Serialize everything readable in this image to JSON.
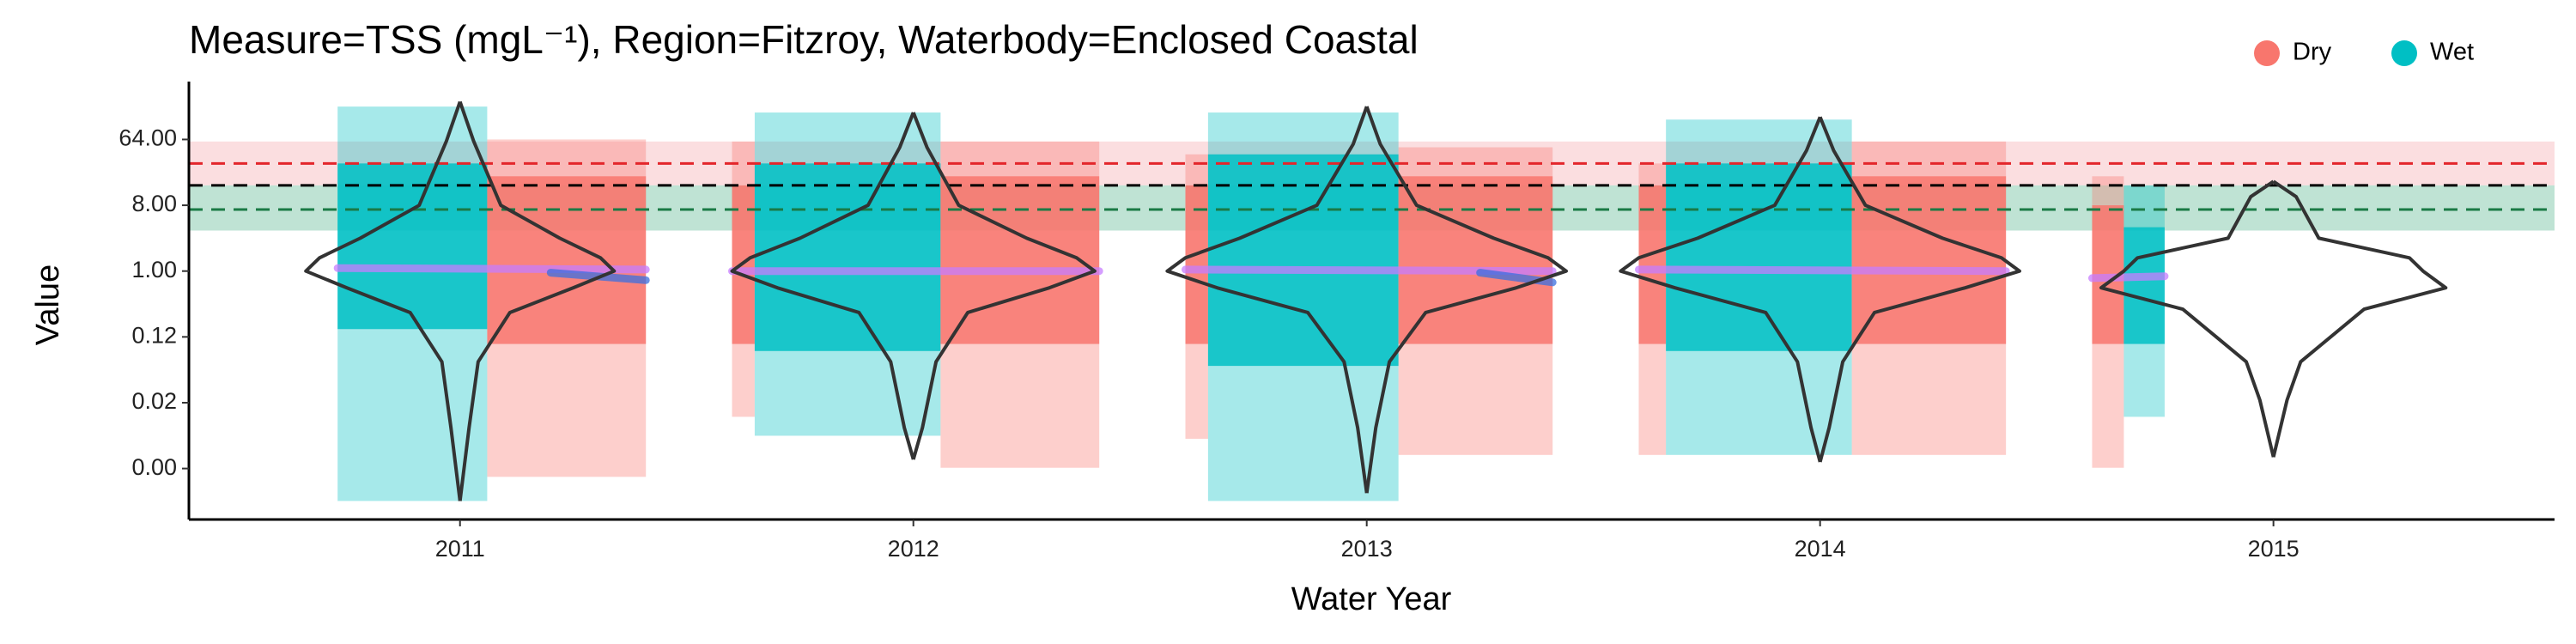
{
  "chart_data": {
    "type": "violin",
    "title": "Measure=TSS (mgL⁻¹), Region=Fitzroy, Waterbody=Enclosed Coastal",
    "xlabel": "Water Year",
    "ylabel": "Value",
    "categories": [
      "2011",
      "2012",
      "2013",
      "2014",
      "2015"
    ],
    "log_scale": true,
    "ylim": [
      0.00039,
      304
    ],
    "yticks": [
      {
        "value": 0.001953,
        "label": "0.00"
      },
      {
        "value": 0.015625,
        "label": "0.02"
      },
      {
        "value": 0.125,
        "label": "0.12"
      },
      {
        "value": 1,
        "label": "1.00"
      },
      {
        "value": 8,
        "label": "8.00"
      },
      {
        "value": 64,
        "label": "64.00"
      }
    ],
    "legend_position": "top-right",
    "series": [
      {
        "name": "Dry",
        "color": "#F8766D"
      },
      {
        "name": "Wet",
        "color": "#00BFC4"
      }
    ],
    "bands": [
      {
        "range": [
          15,
          60
        ],
        "color": "#f9d3d6"
      },
      {
        "range": [
          3.6,
          15
        ],
        "color": "#a9d9c6"
      }
    ],
    "hlines": [
      {
        "value": 30,
        "color": "#e3262b"
      },
      {
        "value": 15,
        "color": "#000000"
      },
      {
        "value": 7,
        "color": "#1a7a45"
      }
    ],
    "point_ranges": [
      {
        "category": 0,
        "series": 1,
        "x": [
          -0.27,
          0.06
        ],
        "range": [
          0.0007,
          181
        ],
        "core": [
          0.16,
          30
        ]
      },
      {
        "category": 0,
        "series": 0,
        "x": [
          0.06,
          0.41
        ],
        "range": [
          0.0015,
          64
        ],
        "core": [
          0.1,
          20
        ]
      },
      {
        "category": 1,
        "series": 0,
        "x": [
          -0.4,
          -0.35
        ],
        "range": [
          0.01,
          60
        ],
        "core": [
          0.1,
          15
        ]
      },
      {
        "category": 1,
        "series": 1,
        "x": [
          -0.35,
          0.06
        ],
        "range": [
          0.0055,
          150
        ],
        "core": [
          0.08,
          30
        ]
      },
      {
        "category": 1,
        "series": 0,
        "x": [
          0.06,
          0.41
        ],
        "range": [
          0.002,
          60
        ],
        "core": [
          0.1,
          20
        ]
      },
      {
        "category": 2,
        "series": 0,
        "x": [
          -0.4,
          -0.35
        ],
        "range": [
          0.005,
          40
        ],
        "core": [
          0.1,
          15
        ]
      },
      {
        "category": 2,
        "series": 1,
        "x": [
          -0.35,
          0.07
        ],
        "range": [
          0.0007,
          150
        ],
        "core": [
          0.05,
          40
        ]
      },
      {
        "category": 2,
        "series": 0,
        "x": [
          0.07,
          0.41
        ],
        "range": [
          0.003,
          50
        ],
        "core": [
          0.1,
          20
        ]
      },
      {
        "category": 3,
        "series": 0,
        "x": [
          -0.4,
          -0.34
        ],
        "range": [
          0.003,
          30
        ],
        "core": [
          0.1,
          15
        ]
      },
      {
        "category": 3,
        "series": 1,
        "x": [
          -0.34,
          0.07
        ],
        "range": [
          0.003,
          120
        ],
        "core": [
          0.08,
          30
        ]
      },
      {
        "category": 3,
        "series": 0,
        "x": [
          0.07,
          0.41
        ],
        "range": [
          0.003,
          60
        ],
        "core": [
          0.1,
          20
        ]
      },
      {
        "category": 4,
        "series": 0,
        "x": [
          -0.4,
          -0.33
        ],
        "range": [
          0.002,
          20
        ],
        "core": [
          0.1,
          8
        ]
      },
      {
        "category": 4,
        "series": 1,
        "x": [
          -0.33,
          -0.24
        ],
        "range": [
          0.01,
          15
        ],
        "core": [
          0.1,
          4
        ]
      }
    ],
    "smooths": [
      {
        "category": 0,
        "x": [
          -0.27,
          0.41
        ],
        "values": [
          1.1,
          1.05
        ],
        "color": "#c77dff"
      },
      {
        "category": 1,
        "x": [
          -0.4,
          0.41
        ],
        "values": [
          1.0,
          1.0
        ],
        "color": "#c77dff"
      },
      {
        "category": 2,
        "x": [
          -0.4,
          0.41
        ],
        "values": [
          1.05,
          1.0
        ],
        "color": "#c77dff"
      },
      {
        "category": 3,
        "x": [
          -0.4,
          0.41
        ],
        "values": [
          1.05,
          1.0
        ],
        "color": "#c77dff"
      },
      {
        "category": 4,
        "x": [
          -0.4,
          -0.24
        ],
        "values": [
          0.8,
          0.85
        ],
        "color": "#c77dff"
      },
      {
        "category": 0,
        "x": [
          0.2,
          0.41
        ],
        "values": [
          0.95,
          0.75
        ],
        "color": "#3b6fe0"
      },
      {
        "category": 2,
        "x": [
          0.25,
          0.41
        ],
        "values": [
          0.95,
          0.7
        ],
        "color": "#3b6fe0"
      }
    ],
    "violins": [
      {
        "category": 0,
        "levels": [
          211,
          60.8,
          8,
          2.83,
          1.52,
          1,
          0.59,
          0.27,
          0.057,
          0.0071,
          0.0007
        ],
        "widths": [
          0,
          0.03,
          0.09,
          0.22,
          0.31,
          0.34,
          0.25,
          0.11,
          0.04,
          0.02,
          0
        ]
      },
      {
        "category": 1,
        "levels": [
          150,
          50,
          8,
          2.83,
          1.52,
          1,
          0.59,
          0.27,
          0.057,
          0.0071,
          0.0026
        ],
        "widths": [
          0,
          0.03,
          0.1,
          0.25,
          0.36,
          0.4,
          0.3,
          0.12,
          0.05,
          0.02,
          0
        ]
      },
      {
        "category": 2,
        "levels": [
          181,
          55,
          8,
          2.83,
          1.52,
          1,
          0.59,
          0.27,
          0.057,
          0.0071,
          0.0009
        ],
        "widths": [
          0,
          0.03,
          0.11,
          0.28,
          0.4,
          0.44,
          0.33,
          0.13,
          0.05,
          0.02,
          0
        ]
      },
      {
        "category": 3,
        "levels": [
          130,
          45,
          8,
          2.83,
          1.52,
          1,
          0.59,
          0.27,
          0.057,
          0.0071,
          0.0024
        ],
        "widths": [
          0,
          0.03,
          0.1,
          0.27,
          0.4,
          0.44,
          0.32,
          0.12,
          0.05,
          0.02,
          0
        ]
      },
      {
        "category": 4,
        "levels": [
          17,
          10.5,
          2.83,
          1.52,
          1,
          0.59,
          0.3,
          0.057,
          0.017,
          0.0028
        ],
        "widths": [
          0,
          0.05,
          0.1,
          0.3,
          0.33,
          0.38,
          0.2,
          0.06,
          0.03,
          0
        ]
      }
    ]
  }
}
